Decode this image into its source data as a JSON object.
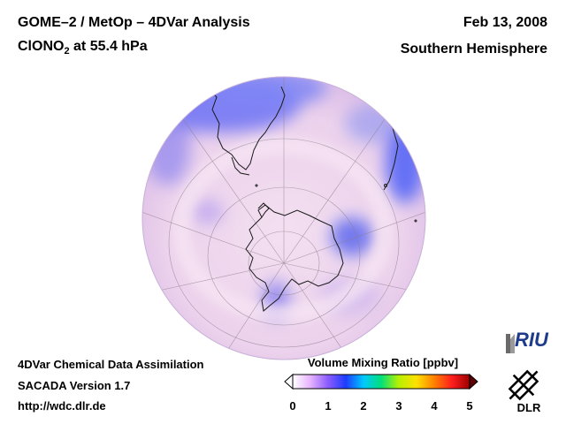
{
  "header": {
    "title_prefix": "GOME–2 / MetOp – 4DVar Analysis",
    "species_main": "ClONO",
    "species_sub": "2",
    "species_rest": " at 55.4 hPa",
    "date": "Feb 13, 2008",
    "region": "Southern Hemisphere"
  },
  "footer": {
    "line1": "4DVar Chemical Data Assimilation",
    "line2": "SACADA Version 1.7",
    "line3": "http://wdc.dlr.de"
  },
  "colorbar": {
    "label": "Volume Mixing Ratio [ppbv]",
    "ticks": [
      "0",
      "1",
      "2",
      "3",
      "4",
      "5"
    ],
    "min": 0,
    "max": 5,
    "stops": [
      "#ffffff",
      "#e6b3ff",
      "#8a5cff",
      "#1e3cff",
      "#00c8ff",
      "#00e07a",
      "#b8f000",
      "#ffe000",
      "#ff8000",
      "#ff1e1e",
      "#9b0000"
    ]
  },
  "logos": {
    "riu_text": "RIU",
    "dlr_text": "DLR"
  },
  "colors": {
    "map_base": "#f0d8ec",
    "map_blue": "#6b73f5",
    "coast": "#1a1a1a"
  }
}
